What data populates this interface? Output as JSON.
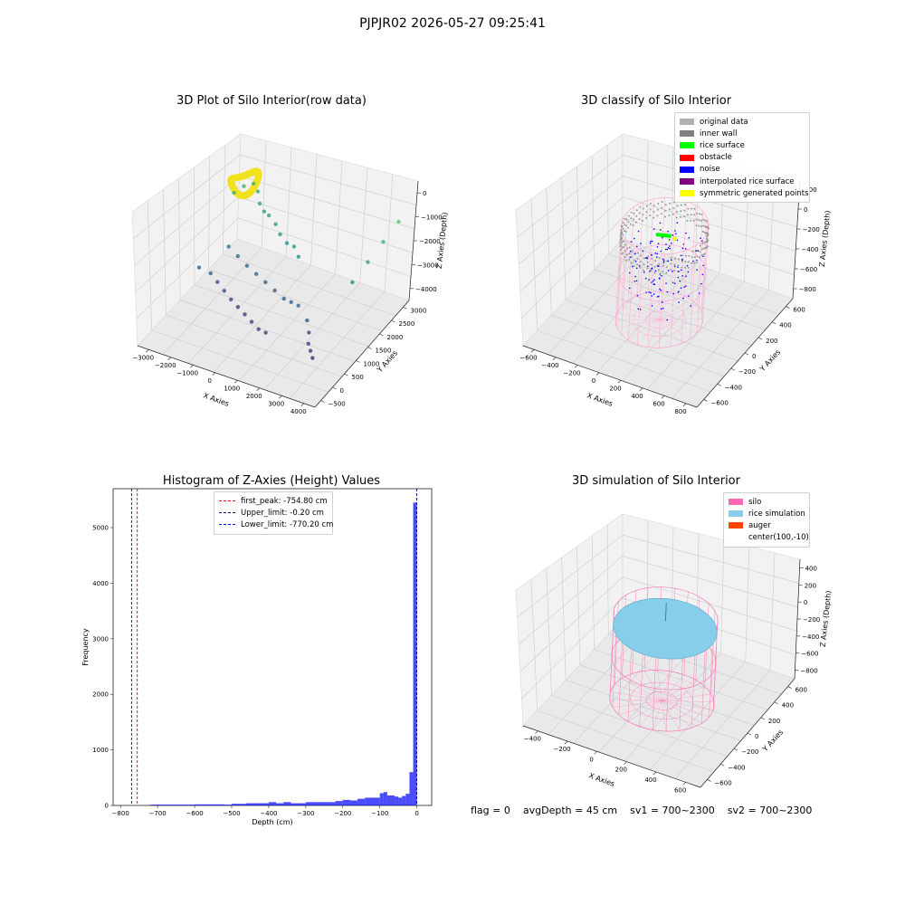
{
  "page_title": "PJPJR02 2026-05-27 09:25:41",
  "status": {
    "flag": "flag = 0",
    "avg_depth": "avgDepth = 45 cm",
    "sv1": "sv1 = 700~2300",
    "sv2": "sv2 = 700~2300"
  },
  "chart_data": [
    {
      "type": "scatter",
      "title": "3D Plot of Silo Interior(row data)",
      "xlabel": "X Axies",
      "ylabel": "Y Axies",
      "zlabel": "Z Axies (Depth)",
      "x_ticks": [
        "−3000",
        "−2000",
        "−1000",
        "0",
        "1000",
        "2000",
        "3000",
        "4000"
      ],
      "y_ticks": [
        "−500",
        "0",
        "500",
        "1000",
        "1500",
        "2000",
        "2500",
        "3000"
      ],
      "z_ticks": [
        "0",
        "−1000",
        "−2000",
        "−3000",
        "−4000"
      ],
      "xlim": [
        -3300,
        4200
      ],
      "ylim": [
        -700,
        3100
      ],
      "zlim": [
        -4500,
        0
      ],
      "colormap": "viridis",
      "series": [
        {
          "points": [
            [
              -2600,
              2300,
              -1700
            ],
            [
              -2400,
              2500,
              -1600
            ],
            [
              -2200,
              2700,
              -1650
            ],
            [
              -1900,
              2600,
              -1750
            ],
            [
              -1600,
              2400,
              -1900
            ],
            [
              -1300,
              2300,
              -2000
            ],
            [
              -1000,
              2200,
              -1950
            ],
            [
              -600,
              2100,
              -2050
            ],
            [
              -200,
              1900,
              -2100
            ],
            [
              200,
              1800,
              -2200
            ],
            [
              600,
              1700,
              -2100
            ],
            [
              1000,
              1500,
              -2150
            ],
            [
              -2500,
              900,
              -3000
            ],
            [
              -2100,
              1000,
              -3200
            ],
            [
              -1700,
              900,
              -3300
            ],
            [
              -1300,
              800,
              -3400
            ],
            [
              -900,
              700,
              -3500
            ],
            [
              -500,
              600,
              -3550
            ],
            [
              -100,
              500,
              -3600
            ],
            [
              300,
              400,
              -3650
            ],
            [
              700,
              300,
              -3700
            ],
            [
              1100,
              200,
              -3600
            ],
            [
              -2000,
              1600,
              -2800
            ],
            [
              -1500,
              1500,
              -2900
            ],
            [
              -1000,
              1400,
              -3000
            ],
            [
              -500,
              1300,
              -3050
            ],
            [
              0,
              1200,
              -3100
            ],
            [
              500,
              1100,
              -3150
            ],
            [
              1000,
              1000,
              -3200
            ],
            [
              1400,
              900,
              -3100
            ],
            [
              1800,
              800,
              -3000
            ],
            [
              2300,
              700,
              -3300
            ],
            [
              2600,
              500,
              -3450
            ],
            [
              2800,
              300,
              -3600
            ],
            [
              3000,
              200,
              -3700
            ],
            [
              3200,
              100,
              -3800
            ],
            [
              3300,
              1500,
              -2400
            ],
            [
              3500,
              1900,
              -2000
            ],
            [
              3700,
              2300,
              -1600
            ],
            [
              3900,
              2700,
              -1200
            ]
          ]
        }
      ]
    },
    {
      "type": "scatter",
      "title": "3D classify of Silo Interior",
      "xlabel": "X Axies",
      "ylabel": "Y Axies",
      "zlabel": "Z Axies (Depth)",
      "x_ticks": [
        "−600",
        "−400",
        "−200",
        "0",
        "200",
        "400",
        "600",
        "800"
      ],
      "y_ticks": [
        "−600",
        "−400",
        "−200",
        "0",
        "200",
        "400",
        "600"
      ],
      "z_ticks": [
        "200",
        "0",
        "−200",
        "−400",
        "−600",
        "−800"
      ],
      "xlim": [
        -650,
        820
      ],
      "ylim": [
        -700,
        700
      ],
      "zlim": [
        -900,
        300
      ],
      "legend": [
        {
          "label": "original data",
          "color": "#b0b0b0"
        },
        {
          "label": "inner wall",
          "color": "#808080"
        },
        {
          "label": "rice surface",
          "color": "#00ff00"
        },
        {
          "label": "obstacle",
          "color": "#ff0000"
        },
        {
          "label": "noise",
          "color": "#0000ff"
        },
        {
          "label": "interpolated rice surface",
          "color": "#800080"
        },
        {
          "label": "symmetric generated points",
          "color": "#ffff00"
        }
      ],
      "silo": {
        "radius": 640,
        "z_top": 80,
        "z_bottom": -860
      }
    },
    {
      "type": "bar",
      "title": "Histogram of Z-Axies (Height) Values",
      "xlabel": "Depth (cm)",
      "ylabel": "Frequency",
      "x_ticks": [
        -800,
        -700,
        -600,
        -500,
        -400,
        -300,
        -200,
        -100,
        0
      ],
      "y_ticks": [
        0,
        1000,
        2000,
        3000,
        4000,
        5000
      ],
      "xlim": [
        -820,
        40
      ],
      "ylim": [
        0,
        5700
      ],
      "bar_color": "#0000ff",
      "bins": [
        {
          "x0": -720,
          "x1": -700,
          "v": 15
        },
        {
          "x0": -700,
          "x1": -680,
          "v": 15
        },
        {
          "x0": -680,
          "x1": -660,
          "v": 15
        },
        {
          "x0": -660,
          "x1": -640,
          "v": 15
        },
        {
          "x0": -640,
          "x1": -620,
          "v": 15
        },
        {
          "x0": -620,
          "x1": -600,
          "v": 15
        },
        {
          "x0": -600,
          "x1": -580,
          "v": 20
        },
        {
          "x0": -580,
          "x1": -560,
          "v": 20
        },
        {
          "x0": -560,
          "x1": -540,
          "v": 20
        },
        {
          "x0": -540,
          "x1": -520,
          "v": 20
        },
        {
          "x0": -520,
          "x1": -500,
          "v": 15
        },
        {
          "x0": -500,
          "x1": -480,
          "v": 30
        },
        {
          "x0": -480,
          "x1": -460,
          "v": 30
        },
        {
          "x0": -460,
          "x1": -440,
          "v": 40
        },
        {
          "x0": -440,
          "x1": -420,
          "v": 40
        },
        {
          "x0": -420,
          "x1": -400,
          "v": 40
        },
        {
          "x0": -400,
          "x1": -380,
          "v": 60
        },
        {
          "x0": -380,
          "x1": -360,
          "v": 40
        },
        {
          "x0": -360,
          "x1": -340,
          "v": 60
        },
        {
          "x0": -340,
          "x1": -320,
          "v": 40
        },
        {
          "x0": -320,
          "x1": -300,
          "v": 40
        },
        {
          "x0": -300,
          "x1": -280,
          "v": 60
        },
        {
          "x0": -280,
          "x1": -260,
          "v": 60
        },
        {
          "x0": -260,
          "x1": -240,
          "v": 60
        },
        {
          "x0": -240,
          "x1": -220,
          "v": 60
        },
        {
          "x0": -220,
          "x1": -200,
          "v": 80
        },
        {
          "x0": -200,
          "x1": -180,
          "v": 100
        },
        {
          "x0": -180,
          "x1": -160,
          "v": 90
        },
        {
          "x0": -160,
          "x1": -140,
          "v": 120
        },
        {
          "x0": -140,
          "x1": -120,
          "v": 140
        },
        {
          "x0": -120,
          "x1": -100,
          "v": 140
        },
        {
          "x0": -100,
          "x1": -90,
          "v": 220
        },
        {
          "x0": -90,
          "x1": -80,
          "v": 240
        },
        {
          "x0": -80,
          "x1": -70,
          "v": 180
        },
        {
          "x0": -70,
          "x1": -60,
          "v": 180
        },
        {
          "x0": -60,
          "x1": -50,
          "v": 160
        },
        {
          "x0": -50,
          "x1": -40,
          "v": 140
        },
        {
          "x0": -40,
          "x1": -30,
          "v": 170
        },
        {
          "x0": -30,
          "x1": -20,
          "v": 210
        },
        {
          "x0": -20,
          "x1": -10,
          "v": 600
        },
        {
          "x0": -10,
          "x1": 0,
          "v": 5450
        }
      ],
      "lines": [
        {
          "label": "first_peak: -754.80 cm",
          "x": -754.8,
          "color": "#ff0000"
        },
        {
          "label": "Upper_limit: -0.20 cm",
          "x": -0.2,
          "color": "#00008b"
        },
        {
          "label": "Lower_limit: -770.20 cm",
          "x": -770.2,
          "color": "#0000ff"
        }
      ]
    },
    {
      "type": "scatter",
      "title": "3D simulation of Silo Interior",
      "xlabel": "X Axies",
      "ylabel": "Y Axies",
      "zlabel": "Z Axies (Depth)",
      "x_ticks": [
        "−400",
        "−200",
        "0",
        "200",
        "400",
        "600"
      ],
      "y_ticks": [
        "−600",
        "−400",
        "−200",
        "0",
        "200",
        "400",
        "600"
      ],
      "z_ticks": [
        "400",
        "200",
        "0",
        "−200",
        "−400",
        "−600",
        "−800"
      ],
      "xlim": [
        -550,
        700
      ],
      "ylim": [
        -700,
        700
      ],
      "zlim": [
        -900,
        450
      ],
      "legend": [
        {
          "label": "silo",
          "color": "#ff69b4"
        },
        {
          "label": "rice simulation",
          "color": "#87ceeb"
        },
        {
          "label": "auger",
          "color": "#ff4500"
        },
        {
          "label": "center(100,-10)",
          "color": ""
        }
      ],
      "silo": {
        "radius": 640,
        "z_top": 80,
        "z_bottom": -860
      },
      "rice_surface_depth": -45
    }
  ]
}
